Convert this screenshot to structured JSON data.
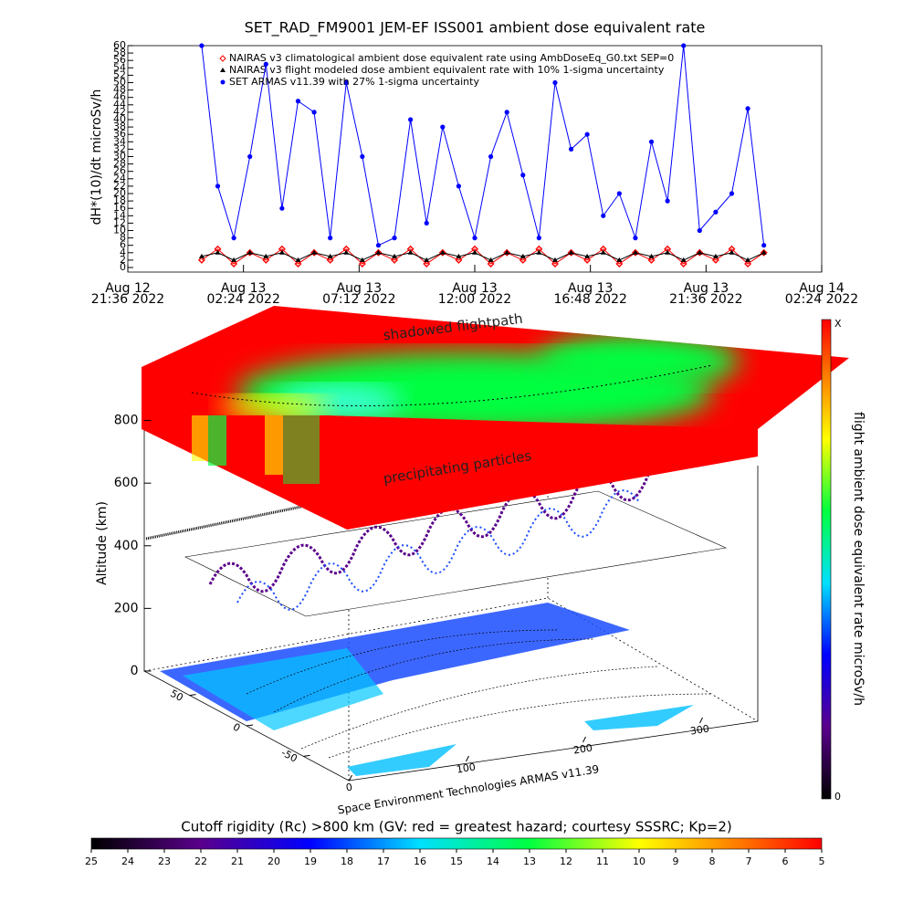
{
  "chart_data": [
    {
      "type": "line",
      "title": "SET_RAD_FM9001  JEM-EF ISS001 ambient dose equivalent rate",
      "ylabel": "dH*(10)/dt microSv/h",
      "x": [
        "2022-08-13T00:40",
        "2022-08-13T01:20",
        "2022-08-13T02:00",
        "2022-08-13T02:40",
        "2022-08-13T03:20",
        "2022-08-13T04:00",
        "2022-08-13T04:40",
        "2022-08-13T05:20",
        "2022-08-13T06:00",
        "2022-08-13T06:40",
        "2022-08-13T07:20",
        "2022-08-13T08:00",
        "2022-08-13T08:40",
        "2022-08-13T09:20",
        "2022-08-13T10:00",
        "2022-08-13T10:40",
        "2022-08-13T11:20",
        "2022-08-13T12:00",
        "2022-08-13T12:40",
        "2022-08-13T13:20",
        "2022-08-13T14:00",
        "2022-08-13T14:40",
        "2022-08-13T15:20",
        "2022-08-13T16:00",
        "2022-08-13T16:40",
        "2022-08-13T17:20",
        "2022-08-13T18:00",
        "2022-08-13T18:40",
        "2022-08-13T19:20",
        "2022-08-13T20:00",
        "2022-08-13T20:40",
        "2022-08-13T21:20",
        "2022-08-13T22:00",
        "2022-08-13T22:40",
        "2022-08-13T23:20",
        "2022-08-14T00:00"
      ],
      "series": [
        {
          "name": "NAIRAS v3 climatological ambient dose equivalent rate using AmbDoseEq_G0.txt SEP=0",
          "color": "#ff0000",
          "marker": "diamond",
          "values": [
            2,
            5,
            1,
            4,
            2,
            5,
            1,
            4,
            2,
            5,
            1,
            4,
            2,
            5,
            1,
            4,
            2,
            5,
            1,
            4,
            2,
            5,
            1,
            4,
            2,
            5,
            1,
            4,
            2,
            5,
            1,
            4,
            2,
            5,
            1,
            4
          ]
        },
        {
          "name": "NAIRAS v3 flight modeled dose ambient equivalent rate with 10% 1-sigma uncertainty",
          "color": "#000000",
          "marker": "triangle",
          "values": [
            3,
            4,
            2,
            4,
            3,
            4,
            2,
            4,
            3,
            4,
            2,
            4,
            3,
            4,
            2,
            4,
            3,
            4,
            2,
            4,
            3,
            4,
            2,
            4,
            3,
            4,
            2,
            4,
            3,
            4,
            2,
            4,
            3,
            4,
            2,
            4
          ]
        },
        {
          "name": "SET ARMAS v11.39 with 27% 1-sigma uncertainty",
          "color": "#0000ff",
          "marker": "circle",
          "values": [
            60,
            22,
            8,
            30,
            55,
            16,
            45,
            42,
            8,
            50,
            30,
            6,
            8,
            40,
            12,
            38,
            22,
            8,
            30,
            42,
            25,
            8,
            50,
            32,
            36,
            14,
            20,
            8,
            34,
            18,
            60,
            10,
            15,
            20,
            43,
            6
          ]
        }
      ],
      "xlim": [
        "2022-08-12T21:36",
        "2022-08-14T02:24"
      ],
      "xticks": [
        {
          "value": "2022-08-12T21:36",
          "label": [
            "Aug 12",
            "21:36 2022"
          ]
        },
        {
          "value": "2022-08-13T02:24",
          "label": [
            "Aug 13",
            "02:24 2022"
          ]
        },
        {
          "value": "2022-08-13T07:12",
          "label": [
            "Aug 13",
            "07:12 2022"
          ]
        },
        {
          "value": "2022-08-13T12:00",
          "label": [
            "Aug 13",
            "12:00 2022"
          ]
        },
        {
          "value": "2022-08-13T16:48",
          "label": [
            "Aug 13",
            "16:48 2022"
          ]
        },
        {
          "value": "2022-08-13T21:36",
          "label": [
            "Aug 13",
            "21:36 2022"
          ]
        },
        {
          "value": "2022-08-14T02:24",
          "label": [
            "Aug 14",
            "02:24 2022"
          ]
        }
      ],
      "ylim": [
        0,
        60
      ],
      "yticks": [
        0,
        2,
        4,
        6,
        8,
        10,
        12,
        14,
        16,
        18,
        20,
        22,
        24,
        26,
        28,
        30,
        32,
        34,
        36,
        38,
        40,
        42,
        44,
        46,
        48,
        50,
        52,
        54,
        56,
        58,
        60
      ]
    },
    {
      "type": "surface3d",
      "zlabel": "Altitude (km)",
      "annotations": [
        "shadowed flightpath",
        "precipitating particles"
      ],
      "credit": "Space Environment Technologies ARMAS v11.39",
      "xlim": [
        0,
        360
      ],
      "xticks": [
        0,
        100,
        200,
        300
      ],
      "ylim": [
        -90,
        90
      ],
      "yticks": [
        -50,
        0,
        50
      ],
      "zlim": [
        0,
        800
      ],
      "zticks": [
        0,
        200,
        400,
        600,
        800
      ],
      "colorbar": {
        "label": "flight ambient dose equivalent rate microSv/h",
        "top_label": "X",
        "bottom_label": "0"
      }
    },
    {
      "type": "colorbar",
      "title": "Cutoff rigidity (Rc) >800 km (GV: red = greatest hazard; courtesy SSSRC; Kp=2)",
      "xlim": [
        25,
        5
      ],
      "xticks": [
        25,
        24,
        23,
        22,
        21,
        20,
        19,
        18,
        17,
        16,
        15,
        14,
        13,
        12,
        11,
        10,
        9,
        8,
        7,
        6,
        5
      ]
    }
  ]
}
